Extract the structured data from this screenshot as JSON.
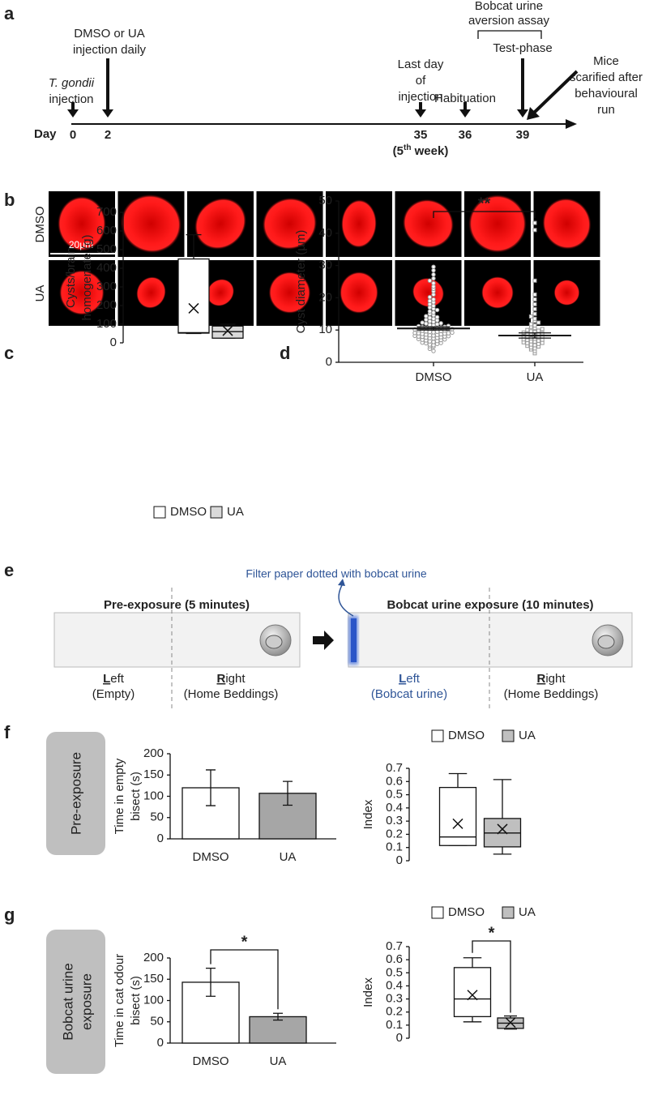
{
  "panel_labels": [
    "a",
    "b",
    "c",
    "d",
    "e",
    "f",
    "g"
  ],
  "timeline": {
    "axis_label": "Day",
    "days": [
      "0",
      "2",
      "35",
      "36",
      "39"
    ],
    "week_note": {
      "pre": "(5",
      "sup": "th",
      "post": " week)"
    },
    "events": [
      [
        "T. gondii",
        "injection"
      ],
      [
        "DMSO or UA",
        "injection daily"
      ],
      [
        "Last day",
        "of",
        "injection"
      ],
      [
        "Habituation"
      ],
      [
        "Test-phase"
      ],
      [
        "Mice",
        "scarified after",
        "behavioural",
        "run"
      ]
    ],
    "assay": [
      "Bobcat urine",
      "aversion assay"
    ]
  },
  "micrographs": {
    "rows": [
      "DMSO",
      "UA"
    ],
    "scale_bar": "20µm"
  },
  "schematic": {
    "note": "Filter paper dotted with bobcat urine",
    "phases": [
      {
        "title": "Pre-exposure (5 minutes)",
        "zones": [
          {
            "initial": "L",
            "rest": "eft",
            "sub": "(Empty)"
          },
          {
            "initial": "R",
            "rest": "ight",
            "sub": "(Home Beddings)"
          }
        ]
      },
      {
        "title": "Bobcat urine exposure (10 minutes)",
        "zones": [
          {
            "initial": "L",
            "rest": "eft",
            "sub": "(Bobcat urine)"
          },
          {
            "initial": "R",
            "rest": "ight",
            "sub": "(Home Beddings)"
          }
        ]
      }
    ]
  },
  "side_labels": [
    [
      "Pre-exposure"
    ],
    [
      "Bobcat urine",
      "exposure"
    ]
  ],
  "chart_data": [
    {
      "type": "box",
      "y_label": [
        "Cysts/brain",
        "homogenate (g)"
      ],
      "ylim": [
        0,
        700
      ],
      "yticks": [
        0,
        100,
        200,
        300,
        400,
        500,
        600,
        700
      ],
      "legend": "bottom",
      "series": [
        {
          "name": "DMSO",
          "color": "#ffffff",
          "min": 50,
          "q1": 52,
          "median": 55,
          "q3": 450,
          "max": 580,
          "mean": 185
        },
        {
          "name": "UA",
          "color": "#d9d9d9",
          "min": 25,
          "q1": 25,
          "median": 60,
          "q3": 90,
          "max": 100,
          "mean": 65
        }
      ]
    },
    {
      "type": "dotplot",
      "y_label": "Cyst diameter (µm)",
      "ylim": [
        0,
        50
      ],
      "yticks": [
        0,
        10,
        20,
        30,
        40,
        50
      ],
      "categories": [
        "DMSO",
        "UA"
      ],
      "significance": "**",
      "color": "#999999",
      "groups": [
        {
          "marker": "circle",
          "mean": 10.5,
          "sem": 0.5,
          "values": [
            3.5,
            4.2,
            4.8,
            5.0,
            5.3,
            5.5,
            5.7,
            5.9,
            6.0,
            6.1,
            6.3,
            6.5,
            6.6,
            6.8,
            6.9,
            7.0,
            7.1,
            7.2,
            7.4,
            7.5,
            7.6,
            7.7,
            7.8,
            7.9,
            8.0,
            8.0,
            8.1,
            8.2,
            8.3,
            8.4,
            8.5,
            8.6,
            8.7,
            8.8,
            8.9,
            9.0,
            9.0,
            9.1,
            9.2,
            9.3,
            9.4,
            9.5,
            9.6,
            9.7,
            9.8,
            9.9,
            10.0,
            10.1,
            10.2,
            10.3,
            10.4,
            10.5,
            10.6,
            10.7,
            10.8,
            10.9,
            11.0,
            11.2,
            11.3,
            11.5,
            11.6,
            11.8,
            12.0,
            12.1,
            12.3,
            12.5,
            12.7,
            13.0,
            13.2,
            13.5,
            13.8,
            14.0,
            14.3,
            14.6,
            15.0,
            15.4,
            15.8,
            16.2,
            16.6,
            17.0,
            17.5,
            18.0,
            18.6,
            19.0,
            19.5,
            20.2,
            21.0,
            22.0,
            22.8,
            23.5,
            24.5,
            25.3,
            26.0,
            27.2,
            28.5,
            29.6
          ]
        },
        {
          "marker": "square",
          "mean": 8.3,
          "sem": 0.8,
          "values": [
            2.8,
            3.5,
            4.0,
            4.3,
            4.6,
            4.9,
            5.1,
            5.3,
            5.5,
            5.7,
            5.9,
            6.0,
            6.2,
            6.4,
            6.5,
            6.7,
            6.9,
            7.0,
            7.1,
            7.3,
            7.4,
            7.6,
            7.8,
            8.0,
            8.1,
            8.3,
            8.5,
            8.7,
            8.9,
            9.0,
            9.2,
            9.4,
            9.6,
            9.8,
            10.0,
            10.3,
            10.6,
            11.0,
            11.4,
            11.8,
            12.3,
            12.8,
            13.5,
            14.2,
            15.0,
            16.5,
            18.0,
            19.5,
            21.0,
            25.3,
            41.0,
            43.2
          ]
        }
      ]
    },
    {
      "type": "bar",
      "y_label": [
        "Time in empty",
        "bisect (s)"
      ],
      "ylim": [
        0,
        200
      ],
      "yticks": [
        0,
        50,
        100,
        150,
        200
      ],
      "categories": [
        "DMSO",
        "UA"
      ],
      "values": [
        120,
        107
      ],
      "errors": [
        42,
        28
      ],
      "colors": [
        "#ffffff",
        "#a6a6a6"
      ]
    },
    {
      "type": "box",
      "y_label": [
        "Index"
      ],
      "ylim": [
        0,
        0.7
      ],
      "yticks": [
        0,
        0.1,
        0.2,
        0.3,
        0.4,
        0.5,
        0.6,
        0.7
      ],
      "legend": "top",
      "series": [
        {
          "name": "DMSO",
          "color": "#ffffff",
          "min": 0.115,
          "q1": 0.115,
          "median": 0.18,
          "q3": 0.555,
          "max": 0.66,
          "mean": 0.28
        },
        {
          "name": "UA",
          "color": "#bfbfbf",
          "min": 0.05,
          "q1": 0.105,
          "median": 0.21,
          "q3": 0.32,
          "max": 0.615,
          "mean": 0.24
        }
      ]
    },
    {
      "type": "bar",
      "y_label": [
        "Time in cat odour",
        "bisect (s)"
      ],
      "ylim": [
        0,
        200
      ],
      "yticks": [
        0,
        50,
        100,
        150,
        200
      ],
      "categories": [
        "DMSO",
        "UA"
      ],
      "values": [
        143,
        62
      ],
      "errors": [
        33,
        8
      ],
      "colors": [
        "#ffffff",
        "#a6a6a6"
      ],
      "significance": "*"
    },
    {
      "type": "box",
      "y_label": [
        "Index"
      ],
      "ylim": [
        0,
        0.7
      ],
      "yticks": [
        0,
        0.1,
        0.2,
        0.3,
        0.4,
        0.5,
        0.6,
        0.7
      ],
      "legend": "top",
      "significance": "*",
      "series": [
        {
          "name": "DMSO",
          "color": "#ffffff",
          "min": 0.125,
          "q1": 0.165,
          "median": 0.3,
          "q3": 0.54,
          "max": 0.615,
          "mean": 0.33
        },
        {
          "name": "UA",
          "color": "#bfbfbf",
          "min": 0.07,
          "q1": 0.075,
          "median": 0.115,
          "q3": 0.155,
          "max": 0.17,
          "mean": 0.12
        }
      ]
    }
  ]
}
